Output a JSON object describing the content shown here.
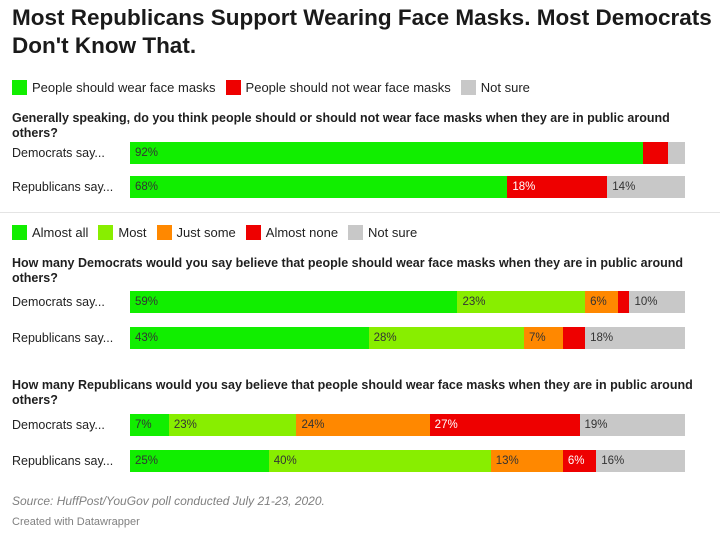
{
  "title": "Most Republicans Support Wearing Face Masks. Most Democrats Don't Know That.",
  "legend1": [
    {
      "label": "People should wear face masks",
      "color": "#11ee00"
    },
    {
      "label": "People should not wear face masks",
      "color": "#ee0000"
    },
    {
      "label": "Not sure",
      "color": "#c8c8c8"
    }
  ],
  "legend2": [
    {
      "label": "Almost all",
      "color": "#11ee00"
    },
    {
      "label": "Most",
      "color": "#88ee00"
    },
    {
      "label": "Just some",
      "color": "#ff8800"
    },
    {
      "label": "Almost none",
      "color": "#ee0000"
    },
    {
      "label": "Not sure",
      "color": "#c8c8c8"
    }
  ],
  "chart_data": [
    {
      "type": "bar",
      "stacked": true,
      "orientation": "horizontal",
      "question": "Generally speaking, do you think people should or should not wear face masks when they are in public around others?",
      "categories": [
        "Democrats say...",
        "Republicans say..."
      ],
      "series": [
        {
          "name": "People should wear face masks",
          "color": "#11ee00",
          "values": [
            92,
            68
          ],
          "labels": [
            "92%",
            "68%"
          ]
        },
        {
          "name": "People should not wear face masks",
          "color": "#ee0000",
          "values": [
            4.5,
            18
          ],
          "labels": [
            "",
            "18%"
          ]
        },
        {
          "name": "Not sure",
          "color": "#c8c8c8",
          "values": [
            3,
            14
          ],
          "labels": [
            "",
            "14%"
          ]
        }
      ]
    },
    {
      "type": "bar",
      "stacked": true,
      "orientation": "horizontal",
      "question": "How many Democrats would you say believe that people should wear face masks when they are in public around others?",
      "categories": [
        "Democrats say...",
        "Republicans say..."
      ],
      "series": [
        {
          "name": "Almost all",
          "color": "#11ee00",
          "values": [
            59,
            43
          ],
          "labels": [
            "59%",
            "43%"
          ]
        },
        {
          "name": "Most",
          "color": "#88ee00",
          "values": [
            23,
            28
          ],
          "labels": [
            "23%",
            "28%"
          ]
        },
        {
          "name": "Just some",
          "color": "#ff8800",
          "values": [
            6,
            7
          ],
          "labels": [
            "6%",
            "7%"
          ]
        },
        {
          "name": "Almost none",
          "color": "#ee0000",
          "values": [
            2,
            4
          ],
          "labels": [
            "",
            ""
          ]
        },
        {
          "name": "Not sure",
          "color": "#c8c8c8",
          "values": [
            10,
            18
          ],
          "labels": [
            "10%",
            "18%"
          ]
        }
      ]
    },
    {
      "type": "bar",
      "stacked": true,
      "orientation": "horizontal",
      "question": "How many Republicans would you say believe that people should wear face masks when they are in public around others?",
      "categories": [
        "Democrats say...",
        "Republicans say..."
      ],
      "series": [
        {
          "name": "Almost all",
          "color": "#11ee00",
          "values": [
            7,
            25
          ],
          "labels": [
            "7%",
            "25%"
          ]
        },
        {
          "name": "Most",
          "color": "#88ee00",
          "values": [
            23,
            40
          ],
          "labels": [
            "23%",
            "40%"
          ]
        },
        {
          "name": "Just some",
          "color": "#ff8800",
          "values": [
            24,
            13
          ],
          "labels": [
            "24%",
            "13%"
          ]
        },
        {
          "name": "Almost none",
          "color": "#ee0000",
          "values": [
            27,
            6
          ],
          "labels": [
            "27%",
            "6%"
          ]
        },
        {
          "name": "Not sure",
          "color": "#c8c8c8",
          "values": [
            19,
            16
          ],
          "labels": [
            "19%",
            "16%"
          ]
        }
      ]
    }
  ],
  "source": "Source: HuffPost/YouGov poll conducted July 21-23, 2020.",
  "credit": "Created with Datawrapper"
}
